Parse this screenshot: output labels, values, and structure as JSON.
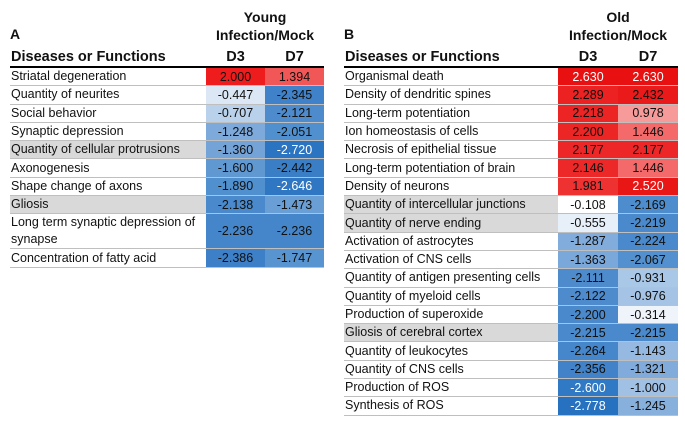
{
  "panel_a": {
    "letter": "A",
    "group_title_line1": "Young",
    "group_title_line2": "Infection/Mock",
    "col_name": "Diseases or Functions",
    "col_d3": "D3",
    "col_d7": "D7",
    "rows": [
      {
        "name": "Striatal degeneration",
        "d3": "2.000",
        "d7": "1.394",
        "d3_color": "#ee1c1c",
        "d7_color": "#f25757",
        "shaded": false,
        "tall": false
      },
      {
        "name": "Quantity of neurites",
        "d3": "-0.447",
        "d7": "-2.345",
        "d3_color": "#dbe7f4",
        "d7_color": "#3f82c9",
        "shaded": false,
        "tall": false
      },
      {
        "name": "Social behavior",
        "d3": "-0.707",
        "d7": "-2.121",
        "d3_color": "#b9d1ea",
        "d7_color": "#4d8bcd",
        "shaded": false,
        "tall": false
      },
      {
        "name": "Synaptic depression",
        "d3": "-1.248",
        "d7": "-2.051",
        "d3_color": "#7eaadb",
        "d7_color": "#5190cf",
        "shaded": false,
        "tall": false
      },
      {
        "name": "Quantity of cellular protrusions",
        "d3": "-1.360",
        "d7": "-2.720",
        "d3_color": "#74a3d8",
        "d7_color": "#2a74c1",
        "shaded": true,
        "tall": false
      },
      {
        "name": "Axonogenesis",
        "d3": "-1.600",
        "d7": "-2.442",
        "d3_color": "#6098d2",
        "d7_color": "#3a7ec6",
        "shaded": false,
        "tall": false
      },
      {
        "name": "Shape change of axons",
        "d3": "-1.890",
        "d7": "-2.646",
        "d3_color": "#5090ce",
        "d7_color": "#2f77c3",
        "shaded": false,
        "tall": false
      },
      {
        "name": "Gliosis",
        "d3": "-2.138",
        "d7": "-1.473",
        "d3_color": "#4a8acc",
        "d7_color": "#6a9fd6",
        "shaded": true,
        "tall": false
      },
      {
        "name": "Long term synaptic depression of synapse",
        "d3": "-2.236",
        "d7": "-2.236",
        "d3_color": "#4586ca",
        "d7_color": "#4586ca",
        "shaded": false,
        "tall": true
      },
      {
        "name": "Concentration of fatty acid",
        "d3": "-2.386",
        "d7": "-1.747",
        "d3_color": "#3d80c7",
        "d7_color": "#5794d0",
        "shaded": false,
        "tall": false
      }
    ]
  },
  "panel_b": {
    "letter": "B",
    "group_title_line1": "Old",
    "group_title_line2": "Infection/Mock",
    "col_name": "Diseases or Functions",
    "col_d3": "D3",
    "col_d7": "D7",
    "rows": [
      {
        "name": "Organismal death",
        "d3": "2.630",
        "d7": "2.630",
        "d3_color": "#e81010",
        "d7_color": "#e81010",
        "shaded": false
      },
      {
        "name": "Density of dendritic spines",
        "d3": "2.289",
        "d7": "2.432",
        "d3_color": "#ec2222",
        "d7_color": "#ea1a1a",
        "shaded": false
      },
      {
        "name": "Long-term potentiation",
        "d3": "2.218",
        "d7": "0.978",
        "d3_color": "#ec2424",
        "d7_color": "#f79a9a",
        "shaded": false
      },
      {
        "name": "Ion homeostasis of cells",
        "d3": "2.200",
        "d7": "1.446",
        "d3_color": "#ec2525",
        "d7_color": "#f46a6a",
        "shaded": false
      },
      {
        "name": "Necrosis of epithelial tissue",
        "d3": "2.177",
        "d7": "2.177",
        "d3_color": "#ed2727",
        "d7_color": "#ed2727",
        "shaded": false
      },
      {
        "name": "Long-term potentiation of brain",
        "d3": "2.146",
        "d7": "1.446",
        "d3_color": "#ed2828",
        "d7_color": "#f46a6a",
        "shaded": false
      },
      {
        "name": "Density of neurons",
        "d3": "1.981",
        "d7": "2.520",
        "d3_color": "#ee3131",
        "d7_color": "#e91616",
        "shaded": false
      },
      {
        "name": "Quantity of intercellular junctions",
        "d3": "-0.108",
        "d7": "-2.169",
        "d3_color": "#ffffff",
        "d7_color": "#4d8ccd",
        "shaded": true
      },
      {
        "name": "Quantity of nerve ending",
        "d3": "-0.555",
        "d7": "-2.219",
        "d3_color": "#e7eff8",
        "d7_color": "#4a8acc",
        "shaded": true
      },
      {
        "name": "Activation of astrocytes",
        "d3": "-1.287",
        "d7": "-2.224",
        "d3_color": "#82acdc",
        "d7_color": "#4a8acc",
        "shaded": false
      },
      {
        "name": "Activation of CNS cells",
        "d3": "-1.363",
        "d7": "-2.067",
        "d3_color": "#7ba8da",
        "d7_color": "#5290cf",
        "shaded": false
      },
      {
        "name": "Quantity of antigen presenting cells",
        "d3": "-2.111",
        "d7": "-0.931",
        "d3_color": "#4d8bcd",
        "d7_color": "#a9c7e6",
        "shaded": false
      },
      {
        "name": "Quantity of myeloid cells",
        "d3": "-2.122",
        "d7": "-0.976",
        "d3_color": "#4d8bcd",
        "d7_color": "#a4c3e5",
        "shaded": false
      },
      {
        "name": "Production of superoxide",
        "d3": "-2.200",
        "d7": "-0.314",
        "d3_color": "#4a89cc",
        "d7_color": "#eef4fa",
        "shaded": false
      },
      {
        "name": "Gliosis of cerebral cortex",
        "d3": "-2.215",
        "d7": "-2.215",
        "d3_color": "#4a89cc",
        "d7_color": "#4a89cc",
        "shaded": true
      },
      {
        "name": "Quantity of leukocytes",
        "d3": "-2.264",
        "d7": "-1.143",
        "d3_color": "#4686ca",
        "d7_color": "#95b9e1",
        "shaded": false
      },
      {
        "name": "Quantity of CNS cells",
        "d3": "-2.356",
        "d7": "-1.321",
        "d3_color": "#4182c8",
        "d7_color": "#80abdb",
        "shaded": false
      },
      {
        "name": "Production of ROS",
        "d3": "-2.600",
        "d7": "-1.000",
        "d3_color": "#3079c4",
        "d7_color": "#a0c0e4",
        "shaded": false
      },
      {
        "name": "Synthesis of ROS",
        "d3": "-2.778",
        "d7": "-1.245",
        "d3_color": "#2672c0",
        "d7_color": "#88b0dd",
        "shaded": false
      }
    ]
  }
}
